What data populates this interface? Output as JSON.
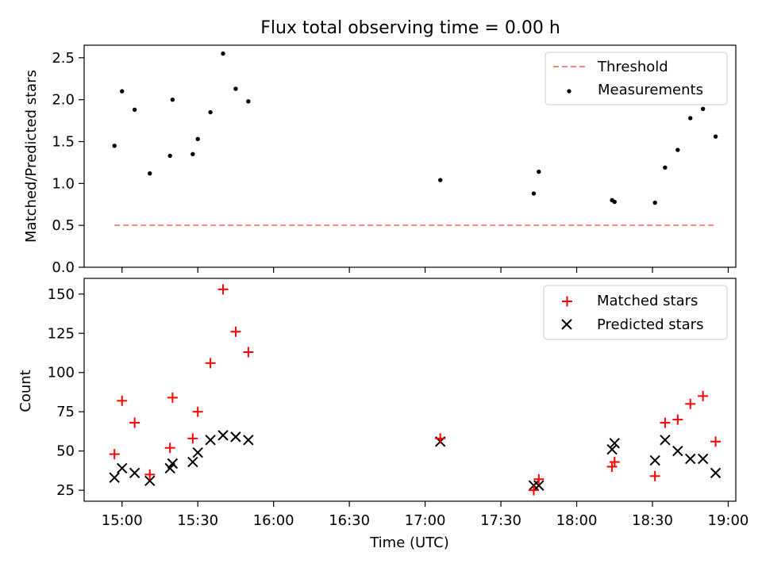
{
  "chart_data": [
    {
      "type": "scatter",
      "title": "Flux total observing time = 0.00 h",
      "xlabel": "",
      "ylabel": "Matched/Predicted stars",
      "ylim": [
        0,
        2.65
      ],
      "yticks": [
        "0.0",
        "0.5",
        "1.0",
        "1.5",
        "2.0",
        "2.5"
      ],
      "legend_position": "top-right",
      "legend": [
        {
          "label": "Threshold",
          "style": "dashed-line",
          "color": "#ff8080"
        },
        {
          "label": "Measurements",
          "style": "dot",
          "color": "#000000"
        }
      ],
      "threshold": {
        "name": "Threshold",
        "value": 0.5,
        "x_start": "14:57",
        "x_end": "18:55",
        "color": "#ff8080"
      },
      "series": [
        {
          "name": "Measurements",
          "color": "#000000",
          "points": [
            {
              "x": "14:57",
              "y": 1.45
            },
            {
              "x": "15:00",
              "y": 2.1
            },
            {
              "x": "15:05",
              "y": 1.88
            },
            {
              "x": "15:11",
              "y": 1.12
            },
            {
              "x": "15:19",
              "y": 1.33
            },
            {
              "x": "15:20",
              "y": 2.0
            },
            {
              "x": "15:28",
              "y": 1.35
            },
            {
              "x": "15:30",
              "y": 1.53
            },
            {
              "x": "15:35",
              "y": 1.85
            },
            {
              "x": "15:40",
              "y": 2.55
            },
            {
              "x": "15:45",
              "y": 2.13
            },
            {
              "x": "15:50",
              "y": 1.98
            },
            {
              "x": "17:06",
              "y": 1.04
            },
            {
              "x": "17:43",
              "y": 0.88
            },
            {
              "x": "17:45",
              "y": 1.14
            },
            {
              "x": "18:14",
              "y": 0.8
            },
            {
              "x": "18:15",
              "y": 0.78
            },
            {
              "x": "18:31",
              "y": 0.77
            },
            {
              "x": "18:35",
              "y": 1.19
            },
            {
              "x": "18:40",
              "y": 1.4
            },
            {
              "x": "18:45",
              "y": 1.78
            },
            {
              "x": "18:50",
              "y": 1.89
            },
            {
              "x": "18:55",
              "y": 1.56
            }
          ]
        }
      ]
    },
    {
      "type": "scatter",
      "title": "",
      "xlabel": "Time (UTC)",
      "ylabel": "Count",
      "xlim": [
        "14:45",
        "19:03"
      ],
      "xticks": [
        "15:00",
        "15:30",
        "16:00",
        "16:30",
        "17:00",
        "17:30",
        "18:00",
        "18:30",
        "19:00"
      ],
      "ylim": [
        18,
        160
      ],
      "yticks": [
        "25",
        "50",
        "75",
        "100",
        "125",
        "150"
      ],
      "legend_position": "top-right",
      "legend": [
        {
          "label": "Matched stars",
          "style": "plus",
          "color": "#ff0000"
        },
        {
          "label": "Predicted stars",
          "style": "x",
          "color": "#000000"
        }
      ],
      "series": [
        {
          "name": "Matched stars",
          "color": "#ff0000",
          "points": [
            {
              "x": "14:57",
              "y": 48
            },
            {
              "x": "15:00",
              "y": 82
            },
            {
              "x": "15:05",
              "y": 68
            },
            {
              "x": "15:11",
              "y": 35
            },
            {
              "x": "15:19",
              "y": 52
            },
            {
              "x": "15:20",
              "y": 84
            },
            {
              "x": "15:28",
              "y": 58
            },
            {
              "x": "15:30",
              "y": 75
            },
            {
              "x": "15:35",
              "y": 106
            },
            {
              "x": "15:40",
              "y": 153
            },
            {
              "x": "15:45",
              "y": 126
            },
            {
              "x": "15:50",
              "y": 113
            },
            {
              "x": "17:06",
              "y": 58
            },
            {
              "x": "17:43",
              "y": 25
            },
            {
              "x": "17:45",
              "y": 32
            },
            {
              "x": "18:14",
              "y": 40
            },
            {
              "x": "18:15",
              "y": 43
            },
            {
              "x": "18:31",
              "y": 34
            },
            {
              "x": "18:35",
              "y": 68
            },
            {
              "x": "18:40",
              "y": 70
            },
            {
              "x": "18:45",
              "y": 80
            },
            {
              "x": "18:50",
              "y": 85
            },
            {
              "x": "18:55",
              "y": 56
            }
          ]
        },
        {
          "name": "Predicted stars",
          "color": "#000000",
          "points": [
            {
              "x": "14:57",
              "y": 33
            },
            {
              "x": "15:00",
              "y": 39
            },
            {
              "x": "15:05",
              "y": 36
            },
            {
              "x": "15:11",
              "y": 31
            },
            {
              "x": "15:19",
              "y": 39
            },
            {
              "x": "15:20",
              "y": 42
            },
            {
              "x": "15:28",
              "y": 43
            },
            {
              "x": "15:30",
              "y": 49
            },
            {
              "x": "15:35",
              "y": 57
            },
            {
              "x": "15:40",
              "y": 60
            },
            {
              "x": "15:45",
              "y": 59
            },
            {
              "x": "15:50",
              "y": 57
            },
            {
              "x": "17:06",
              "y": 56
            },
            {
              "x": "17:43",
              "y": 28
            },
            {
              "x": "17:45",
              "y": 28
            },
            {
              "x": "18:14",
              "y": 51
            },
            {
              "x": "18:15",
              "y": 55
            },
            {
              "x": "18:31",
              "y": 44
            },
            {
              "x": "18:35",
              "y": 57
            },
            {
              "x": "18:40",
              "y": 50
            },
            {
              "x": "18:45",
              "y": 45
            },
            {
              "x": "18:50",
              "y": 45
            },
            {
              "x": "18:55",
              "y": 36
            }
          ]
        }
      ]
    }
  ]
}
